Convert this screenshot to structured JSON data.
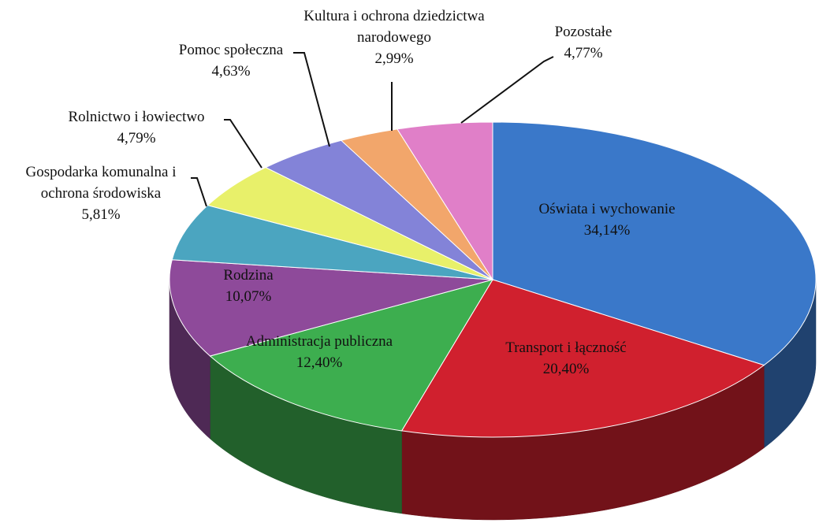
{
  "chart_data": {
    "type": "pie",
    "categories": [
      "Oświata i wychowanie",
      "Transport i łączność",
      "Administracja publiczna",
      "Rodzina",
      "Gospodarka komunalna i ochrona środowiska",
      "Rolnictwo i łowiectwo",
      "Pomoc społeczna",
      "Kultura i ochrona dziedzictwa narodowego",
      "Pozostałe"
    ],
    "values": [
      34.14,
      20.4,
      12.4,
      10.07,
      5.81,
      4.79,
      4.63,
      2.99,
      4.77
    ],
    "value_labels": [
      "34,14%",
      "20,40%",
      "12,40%",
      "10,07%",
      "5,81%",
      "4,79%",
      "4,63%",
      "2,99%",
      "4,77%"
    ],
    "colors": [
      "#3a78c9",
      "#d0202e",
      "#3dae4f",
      "#8e4a9a",
      "#4ba5c0",
      "#e8f06a",
      "#8383d8",
      "#f2a66b",
      "#e07fc8"
    ]
  }
}
